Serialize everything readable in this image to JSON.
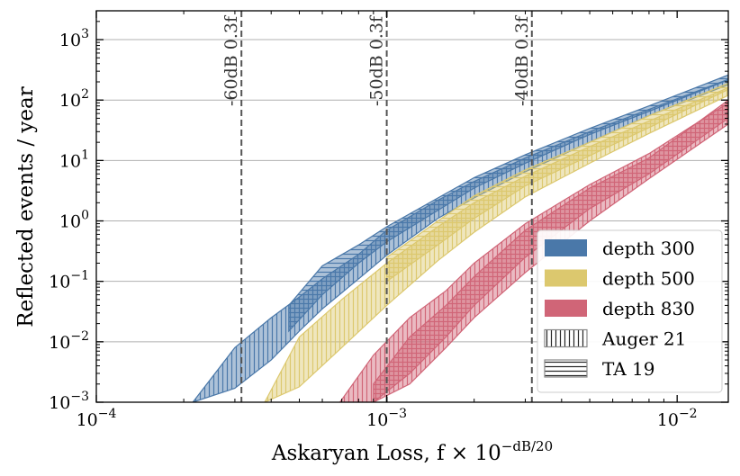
{
  "chart_data": {
    "type": "area",
    "xlabel": "Askaryan Loss, f × 10",
    "xlabel_superscript": "−dB/20",
    "ylabel": "Reflected events / year",
    "xscale": "log",
    "yscale": "log",
    "xlim": [
      0.0001,
      0.015
    ],
    "ylim": [
      0.001,
      3000
    ],
    "grid": "horizontal at major y ticks",
    "legend_position": "lower-right",
    "x_ticks": [
      {
        "value": 0.0001,
        "label": "10",
        "exp": "−4"
      },
      {
        "value": 0.001,
        "label": "10",
        "exp": "−3"
      },
      {
        "value": 0.01,
        "label": "10",
        "exp": "−2"
      }
    ],
    "y_ticks": [
      {
        "value": 0.001,
        "label": "10",
        "exp": "−3"
      },
      {
        "value": 0.01,
        "label": "10",
        "exp": "−2"
      },
      {
        "value": 0.1,
        "label": "10",
        "exp": "−1"
      },
      {
        "value": 1,
        "label": "10",
        "exp": "0"
      },
      {
        "value": 10,
        "label": "10",
        "exp": "1"
      },
      {
        "value": 100,
        "label": "10",
        "exp": "2"
      },
      {
        "value": 1000,
        "label": "10",
        "exp": "3"
      }
    ],
    "vertical_lines": [
      {
        "x": 0.000316,
        "label": "-60dB 0.3f"
      },
      {
        "x": 0.001,
        "label": "-50dB 0.3f"
      },
      {
        "x": 0.00316,
        "label": "-40dB 0.3f"
      }
    ],
    "series": [
      {
        "name": "depth 300",
        "color": "#4a78a9",
        "bands": [
          {
            "spectrum": "Auger 21",
            "hatch": "vertical",
            "x": [
              0.000215,
              0.0003,
              0.0004,
              0.0005,
              0.0006,
              0.0008,
              0.001,
              0.0015,
              0.002,
              0.003,
              0.005,
              0.008,
              0.015
            ],
            "upper": [
              0.001,
              0.008,
              0.025,
              0.055,
              0.11,
              0.28,
              0.7,
              2.2,
              4.5,
              11,
              30,
              70,
              220
            ],
            "lower": [
              0.001,
              0.0017,
              0.005,
              0.015,
              0.035,
              0.11,
              0.27,
              1.1,
              2.4,
              6.5,
              20,
              55,
              180
            ]
          },
          {
            "spectrum": "TA 19",
            "hatch": "horizontal",
            "x": [
              0.00046,
              0.0006,
              0.0008,
              0.001,
              0.0015,
              0.002,
              0.003,
              0.005,
              0.008,
              0.015
            ],
            "upper": [
              0.04,
              0.18,
              0.4,
              0.8,
              2.4,
              5.2,
              12.5,
              34,
              80,
              260
            ],
            "lower": [
              0.015,
              0.06,
              0.2,
              0.45,
              1.5,
              3.5,
              9,
              27,
              65,
              215
            ]
          }
        ]
      },
      {
        "name": "depth 500",
        "color": "#dcc86e",
        "bands": [
          {
            "spectrum": "Auger 21",
            "hatch": "vertical",
            "x": [
              0.00038,
              0.0005,
              0.0007,
              0.001,
              0.0015,
              0.002,
              0.003,
              0.005,
              0.008,
              0.015
            ],
            "upper": [
              0.001,
              0.012,
              0.05,
              0.2,
              0.8,
              2,
              5.5,
              17,
              45,
              160
            ],
            "lower": [
              0.001,
              0.0018,
              0.008,
              0.04,
              0.22,
              0.65,
              2.5,
              9,
              28,
              120
            ]
          },
          {
            "spectrum": "TA 19",
            "hatch": "horizontal",
            "x": [
              0.001,
              0.0015,
              0.002,
              0.003,
              0.005,
              0.008,
              0.015
            ],
            "upper": [
              0.25,
              1.0,
              2.6,
              7,
              20,
              55,
              190
            ],
            "lower": [
              0.1,
              0.4,
              1.1,
              3.8,
              12,
              35,
              150
            ]
          }
        ]
      },
      {
        "name": "depth 830",
        "color": "#d06577",
        "bands": [
          {
            "spectrum": "Auger 21",
            "hatch": "vertical",
            "x": [
              0.00069,
              0.0009,
              0.0012,
              0.0016,
              0.002,
              0.003,
              0.005,
              0.008,
              0.015
            ],
            "upper": [
              0.001,
              0.006,
              0.025,
              0.07,
              0.2,
              0.9,
              4,
              13,
              90
            ],
            "lower": [
              0.001,
              0.001,
              0.002,
              0.008,
              0.025,
              0.14,
              1.0,
              5,
              40
            ]
          },
          {
            "spectrum": "TA 19",
            "hatch": "horizontal",
            "x": [
              0.0009,
              0.0012,
              0.0016,
              0.002,
              0.003,
              0.005,
              0.008,
              0.015
            ],
            "upper": [
              0.002,
              0.012,
              0.04,
              0.12,
              0.7,
              3.5,
              11,
              100
            ],
            "lower": [
              0.001,
              0.003,
              0.012,
              0.04,
              0.25,
              1.6,
              6,
              50
            ]
          }
        ]
      }
    ],
    "legend": [
      {
        "label": "depth 300",
        "kind": "solid",
        "color": "#4a78a9"
      },
      {
        "label": "depth 500",
        "kind": "solid",
        "color": "#dcc86e"
      },
      {
        "label": "depth 830",
        "kind": "solid",
        "color": "#d06577"
      },
      {
        "label": "Auger 21",
        "kind": "hatch-vertical",
        "color": "#888888"
      },
      {
        "label": "TA 19",
        "kind": "hatch-horizontal",
        "color": "#888888"
      }
    ]
  }
}
